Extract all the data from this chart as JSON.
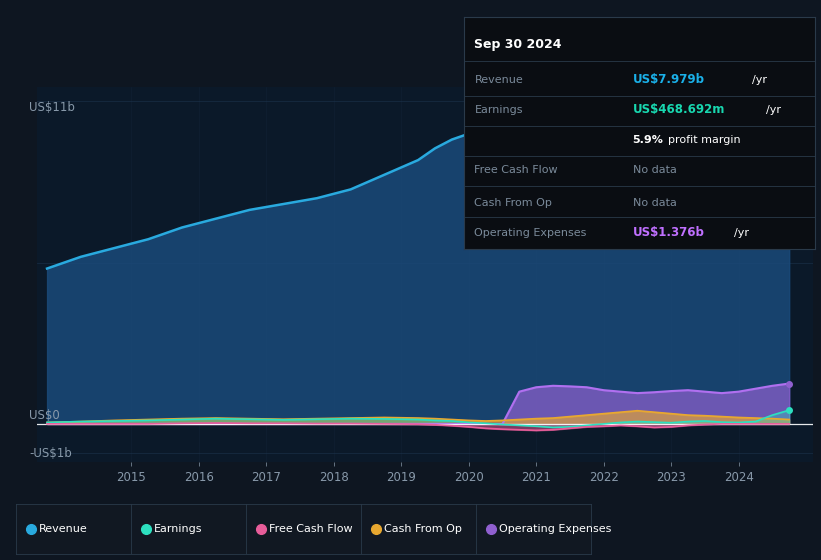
{
  "bg_color": "#0e1621",
  "chart_bg_color": "#0b1929",
  "grid_color": "#1e3550",
  "title_label": "US$11b",
  "zero_label": "US$0",
  "neg_label": "-US$1b",
  "years": [
    2013.75,
    2014.25,
    2014.75,
    2015.25,
    2015.75,
    2016.25,
    2016.75,
    2017.25,
    2017.75,
    2018.25,
    2018.75,
    2019.25,
    2019.5,
    2019.75,
    2020.0,
    2020.25,
    2020.5,
    2020.75,
    2021.0,
    2021.25,
    2021.5,
    2021.75,
    2022.0,
    2022.25,
    2022.5,
    2022.75,
    2023.0,
    2023.25,
    2023.5,
    2023.75,
    2024.0,
    2024.25,
    2024.5,
    2024.75
  ],
  "revenue": [
    5.3,
    5.7,
    6.0,
    6.3,
    6.7,
    7.0,
    7.3,
    7.5,
    7.7,
    8.0,
    8.5,
    9.0,
    9.4,
    9.7,
    9.9,
    9.8,
    9.6,
    9.2,
    8.4,
    8.0,
    8.2,
    8.6,
    8.9,
    9.0,
    8.9,
    8.8,
    8.9,
    9.0,
    8.8,
    8.2,
    7.5,
    7.0,
    7.4,
    7.979
  ],
  "earnings": [
    0.05,
    0.08,
    0.1,
    0.12,
    0.15,
    0.18,
    0.16,
    0.14,
    0.16,
    0.18,
    0.17,
    0.15,
    0.12,
    0.1,
    0.05,
    0.02,
    -0.02,
    -0.05,
    -0.08,
    -0.12,
    -0.1,
    -0.05,
    0.0,
    0.05,
    0.08,
    0.06,
    0.04,
    0.08,
    0.1,
    0.06,
    0.05,
    0.08,
    0.3,
    0.469
  ],
  "free_cash_flow": [
    0.0,
    0.0,
    0.0,
    0.0,
    0.02,
    0.03,
    0.02,
    0.02,
    0.01,
    0.01,
    0.0,
    -0.01,
    -0.03,
    -0.06,
    -0.1,
    -0.15,
    -0.18,
    -0.2,
    -0.22,
    -0.2,
    -0.15,
    -0.1,
    -0.08,
    -0.05,
    -0.08,
    -0.12,
    -0.1,
    -0.05,
    -0.02,
    0.0,
    0.0,
    0.0,
    0.0,
    0.0
  ],
  "cash_from_op": [
    0.05,
    0.08,
    0.12,
    0.15,
    0.18,
    0.2,
    0.18,
    0.16,
    0.18,
    0.2,
    0.22,
    0.2,
    0.18,
    0.15,
    0.12,
    0.1,
    0.12,
    0.15,
    0.18,
    0.2,
    0.25,
    0.3,
    0.35,
    0.4,
    0.45,
    0.4,
    0.35,
    0.3,
    0.28,
    0.25,
    0.22,
    0.2,
    0.18,
    0.15
  ],
  "op_expenses": [
    0.0,
    0.0,
    0.0,
    0.0,
    0.0,
    0.0,
    0.0,
    0.0,
    0.0,
    0.0,
    0.0,
    0.0,
    0.0,
    0.0,
    0.0,
    0.0,
    0.0,
    1.1,
    1.25,
    1.3,
    1.28,
    1.25,
    1.15,
    1.1,
    1.05,
    1.08,
    1.12,
    1.15,
    1.1,
    1.05,
    1.1,
    1.2,
    1.3,
    1.376
  ],
  "revenue_color": "#29aadf",
  "earnings_color": "#2de0c0",
  "fcf_color": "#e85d9a",
  "cash_op_color": "#e8a830",
  "op_exp_color": "#9060d0",
  "revenue_fill_color": "#1a4a7a",
  "legend_items": [
    "Revenue",
    "Earnings",
    "Free Cash Flow",
    "Cash From Op",
    "Operating Expenses"
  ],
  "legend_colors": [
    "#29aadf",
    "#2de0c0",
    "#e85d9a",
    "#e8a830",
    "#9060d0"
  ],
  "info_box": {
    "date": "Sep 30 2024",
    "revenue_label": "Revenue",
    "revenue_value": "US$7.979b",
    "revenue_suffix": "/yr",
    "earnings_label": "Earnings",
    "earnings_value": "US$468.692m",
    "earnings_suffix": "/yr",
    "margin_text": "5.9%",
    "margin_suffix": "profit margin",
    "fcf_label": "Free Cash Flow",
    "fcf_value": "No data",
    "cash_op_label": "Cash From Op",
    "cash_op_value": "No data",
    "op_exp_label": "Operating Expenses",
    "op_exp_value": "US$1.376b",
    "op_exp_suffix": "/yr"
  },
  "ylim": [
    -1.3,
    11.5
  ],
  "xlim": [
    2013.6,
    2025.1
  ],
  "xticks": [
    2015,
    2016,
    2017,
    2018,
    2019,
    2020,
    2021,
    2022,
    2023,
    2024
  ]
}
